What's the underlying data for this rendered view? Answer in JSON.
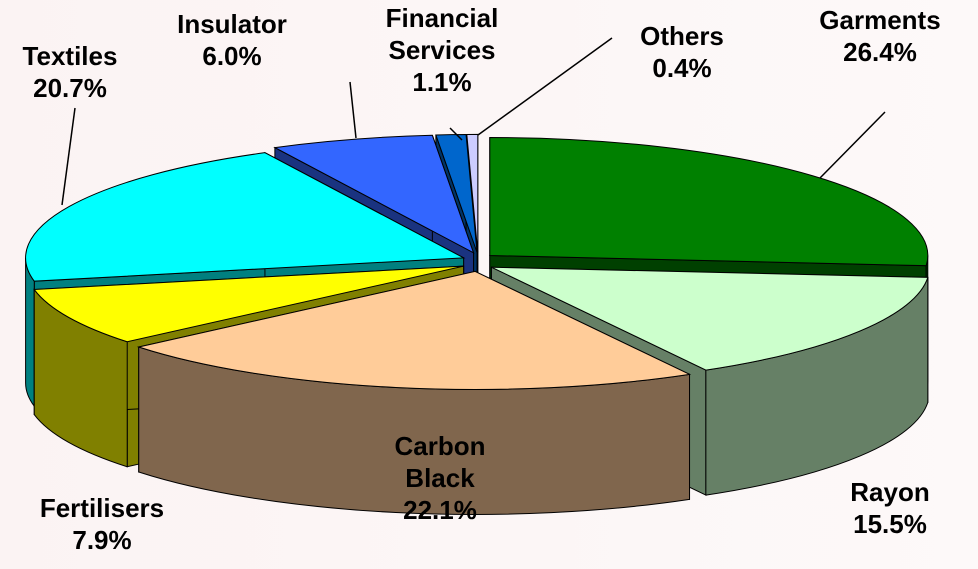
{
  "chart_data": {
    "type": "pie3d",
    "categories": [
      "Garments",
      "Rayon",
      "Carbon Black",
      "Fertilisers",
      "Textiles",
      "Insulator",
      "Financial Services",
      "Others"
    ],
    "values": [
      26.4,
      15.5,
      22.1,
      7.9,
      20.7,
      6.0,
      1.1,
      0.4
    ],
    "value_labels": [
      "26.4%",
      "15.5%",
      "22.1%",
      "7.9%",
      "20.7%",
      "6.0%",
      "1.1%",
      "0.4%"
    ],
    "colors": [
      "#008000",
      "#ccffcc",
      "#ffcc99",
      "#ffff00",
      "#00ffff",
      "#3366ff",
      "#0066cc",
      "#ccccff"
    ]
  }
}
